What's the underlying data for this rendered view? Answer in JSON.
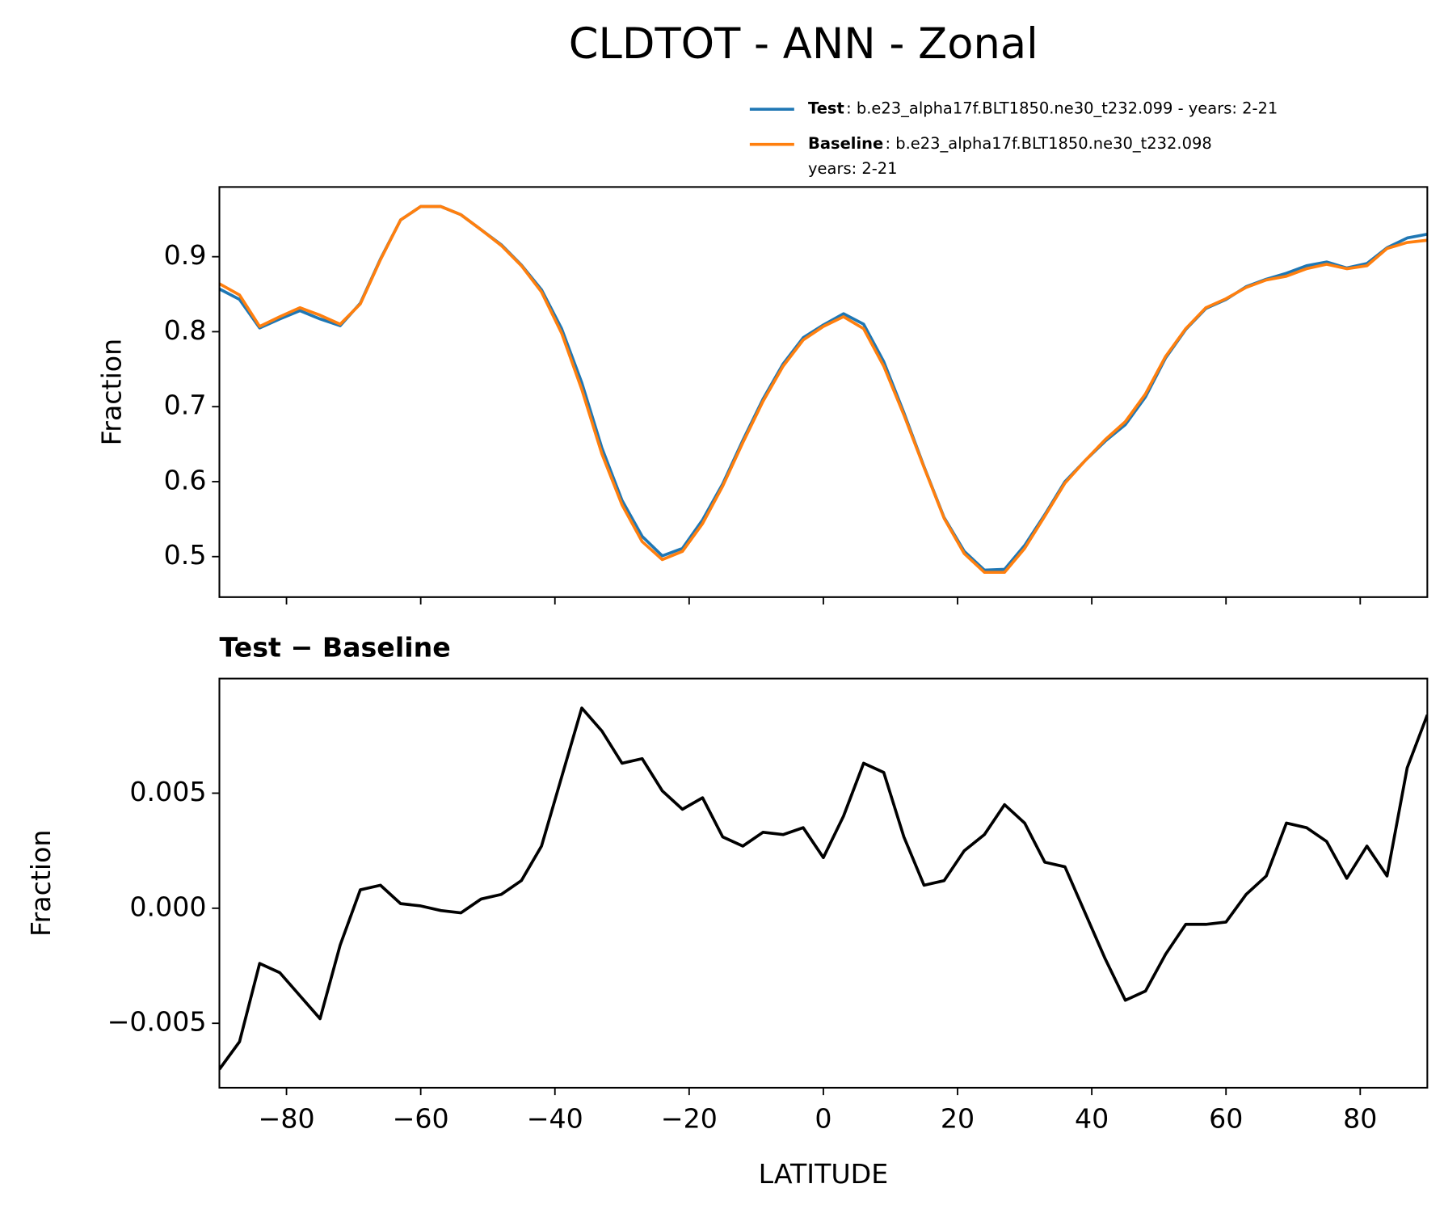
{
  "title": "CLDTOT - ANN - Zonal",
  "chart_data": [
    {
      "type": "line",
      "ylabel": "Fraction",
      "legend": "upper right",
      "x": [
        -90,
        -87,
        -84,
        -81,
        -78,
        -75,
        -72,
        -69,
        -66,
        -63,
        -60,
        -57,
        -54,
        -51,
        -48,
        -45,
        -42,
        -39,
        -36,
        -33,
        -30,
        -27,
        -24,
        -21,
        -18,
        -15,
        -12,
        -9,
        -6,
        -3,
        0,
        3,
        6,
        9,
        12,
        15,
        18,
        21,
        24,
        27,
        30,
        33,
        36,
        39,
        42,
        45,
        48,
        51,
        54,
        57,
        60,
        63,
        66,
        69,
        72,
        75,
        78,
        81,
        84,
        87,
        90
      ],
      "series": [
        {
          "name": "Test",
          "description": [
            ": b.e23_alpha17f.BLT1850.ne30_t232.099 - years: 2-21"
          ],
          "color": "#1f77b4",
          "values": [
            0.857,
            0.843,
            0.805,
            0.817,
            0.828,
            0.817,
            0.808,
            0.838,
            0.897,
            0.949,
            0.967,
            0.967,
            0.956,
            0.936,
            0.916,
            0.889,
            0.856,
            0.804,
            0.732,
            0.645,
            0.575,
            0.527,
            0.501,
            0.511,
            0.549,
            0.597,
            0.655,
            0.71,
            0.757,
            0.792,
            0.809,
            0.824,
            0.81,
            0.76,
            0.692,
            0.62,
            0.552,
            0.507,
            0.482,
            0.483,
            0.515,
            0.556,
            0.6,
            0.628,
            0.654,
            0.676,
            0.713,
            0.765,
            0.803,
            0.831,
            0.843,
            0.86,
            0.87,
            0.878,
            0.888,
            0.893,
            0.885,
            0.891,
            0.912,
            0.925,
            0.93
          ]
        },
        {
          "name": "Baseline",
          "description": [
            ": b.e23_alpha17f.BLT1850.ne30_t232.098",
            "years: 2-21"
          ],
          "color": "#ff7f0e",
          "values": [
            0.864,
            0.849,
            0.807,
            0.82,
            0.832,
            0.822,
            0.81,
            0.837,
            0.896,
            0.949,
            0.967,
            0.967,
            0.956,
            0.936,
            0.915,
            0.888,
            0.853,
            0.798,
            0.723,
            0.637,
            0.569,
            0.52,
            0.496,
            0.507,
            0.544,
            0.594,
            0.652,
            0.707,
            0.754,
            0.789,
            0.807,
            0.82,
            0.804,
            0.754,
            0.689,
            0.619,
            0.551,
            0.504,
            0.479,
            0.479,
            0.511,
            0.554,
            0.598,
            0.628,
            0.656,
            0.68,
            0.717,
            0.767,
            0.804,
            0.832,
            0.844,
            0.859,
            0.869,
            0.874,
            0.884,
            0.89,
            0.884,
            0.888,
            0.911,
            0.919,
            0.922
          ]
        }
      ],
      "xlim": [
        -90,
        90
      ],
      "xticks": [
        {
          "value": -80,
          "label": "−80"
        },
        {
          "value": -60,
          "label": "−60"
        },
        {
          "value": -40,
          "label": "−40"
        },
        {
          "value": -20,
          "label": "−20"
        },
        0,
        20,
        40,
        60,
        80
      ],
      "ylim": [
        0.446,
        0.993
      ],
      "yticks": [
        0.5,
        0.6,
        0.7,
        0.8,
        0.9
      ]
    },
    {
      "type": "line",
      "title": "Test − Baseline",
      "xlabel": "LATITUDE",
      "ylabel": "Fraction",
      "x": [
        -90,
        -87,
        -84,
        -81,
        -78,
        -75,
        -72,
        -69,
        -66,
        -63,
        -60,
        -57,
        -54,
        -51,
        -48,
        -45,
        -42,
        -39,
        -36,
        -33,
        -30,
        -27,
        -24,
        -21,
        -18,
        -15,
        -12,
        -9,
        -6,
        -3,
        0,
        3,
        6,
        9,
        12,
        15,
        18,
        21,
        24,
        27,
        30,
        33,
        36,
        39,
        42,
        45,
        48,
        51,
        54,
        57,
        60,
        63,
        66,
        69,
        72,
        75,
        78,
        81,
        84,
        87,
        90
      ],
      "series": [
        {
          "color": "#000000",
          "values": [
            -0.007,
            -0.0058,
            -0.0024,
            -0.0028,
            -0.0038,
            -0.0048,
            -0.0016,
            0.0008,
            0.001,
            0.0002,
            0.0001,
            -0.0001,
            -0.0002,
            0.0004,
            0.0006,
            0.0012,
            0.0027,
            0.0057,
            0.0087,
            0.0077,
            0.0063,
            0.0065,
            0.0051,
            0.0043,
            0.0048,
            0.0031,
            0.0027,
            0.0033,
            0.0032,
            0.0035,
            0.0022,
            0.004,
            0.0063,
            0.0059,
            0.0031,
            0.001,
            0.0012,
            0.0025,
            0.0032,
            0.0045,
            0.0037,
            0.002,
            0.0018,
            -0.0002,
            -0.0022,
            -0.004,
            -0.0036,
            -0.002,
            -0.0007,
            -0.0007,
            -0.0006,
            0.0006,
            0.0014,
            0.0037,
            0.0035,
            0.0029,
            0.0013,
            0.0027,
            0.0014,
            0.0061,
            0.0084
          ]
        }
      ],
      "xlim": [
        -90,
        90
      ],
      "xticks": [
        {
          "value": -80,
          "label": "−80"
        },
        {
          "value": -60,
          "label": "−60"
        },
        {
          "value": -40,
          "label": "−40"
        },
        {
          "value": -20,
          "label": "−20"
        },
        0,
        20,
        40,
        60,
        80
      ],
      "ylim": [
        -0.0078,
        0.00998
      ],
      "yticks": [
        {
          "value": -0.005,
          "label": "−0.005"
        },
        {
          "value": 0,
          "label": "0.000"
        },
        {
          "value": 0.005,
          "label": "0.005"
        }
      ]
    }
  ]
}
